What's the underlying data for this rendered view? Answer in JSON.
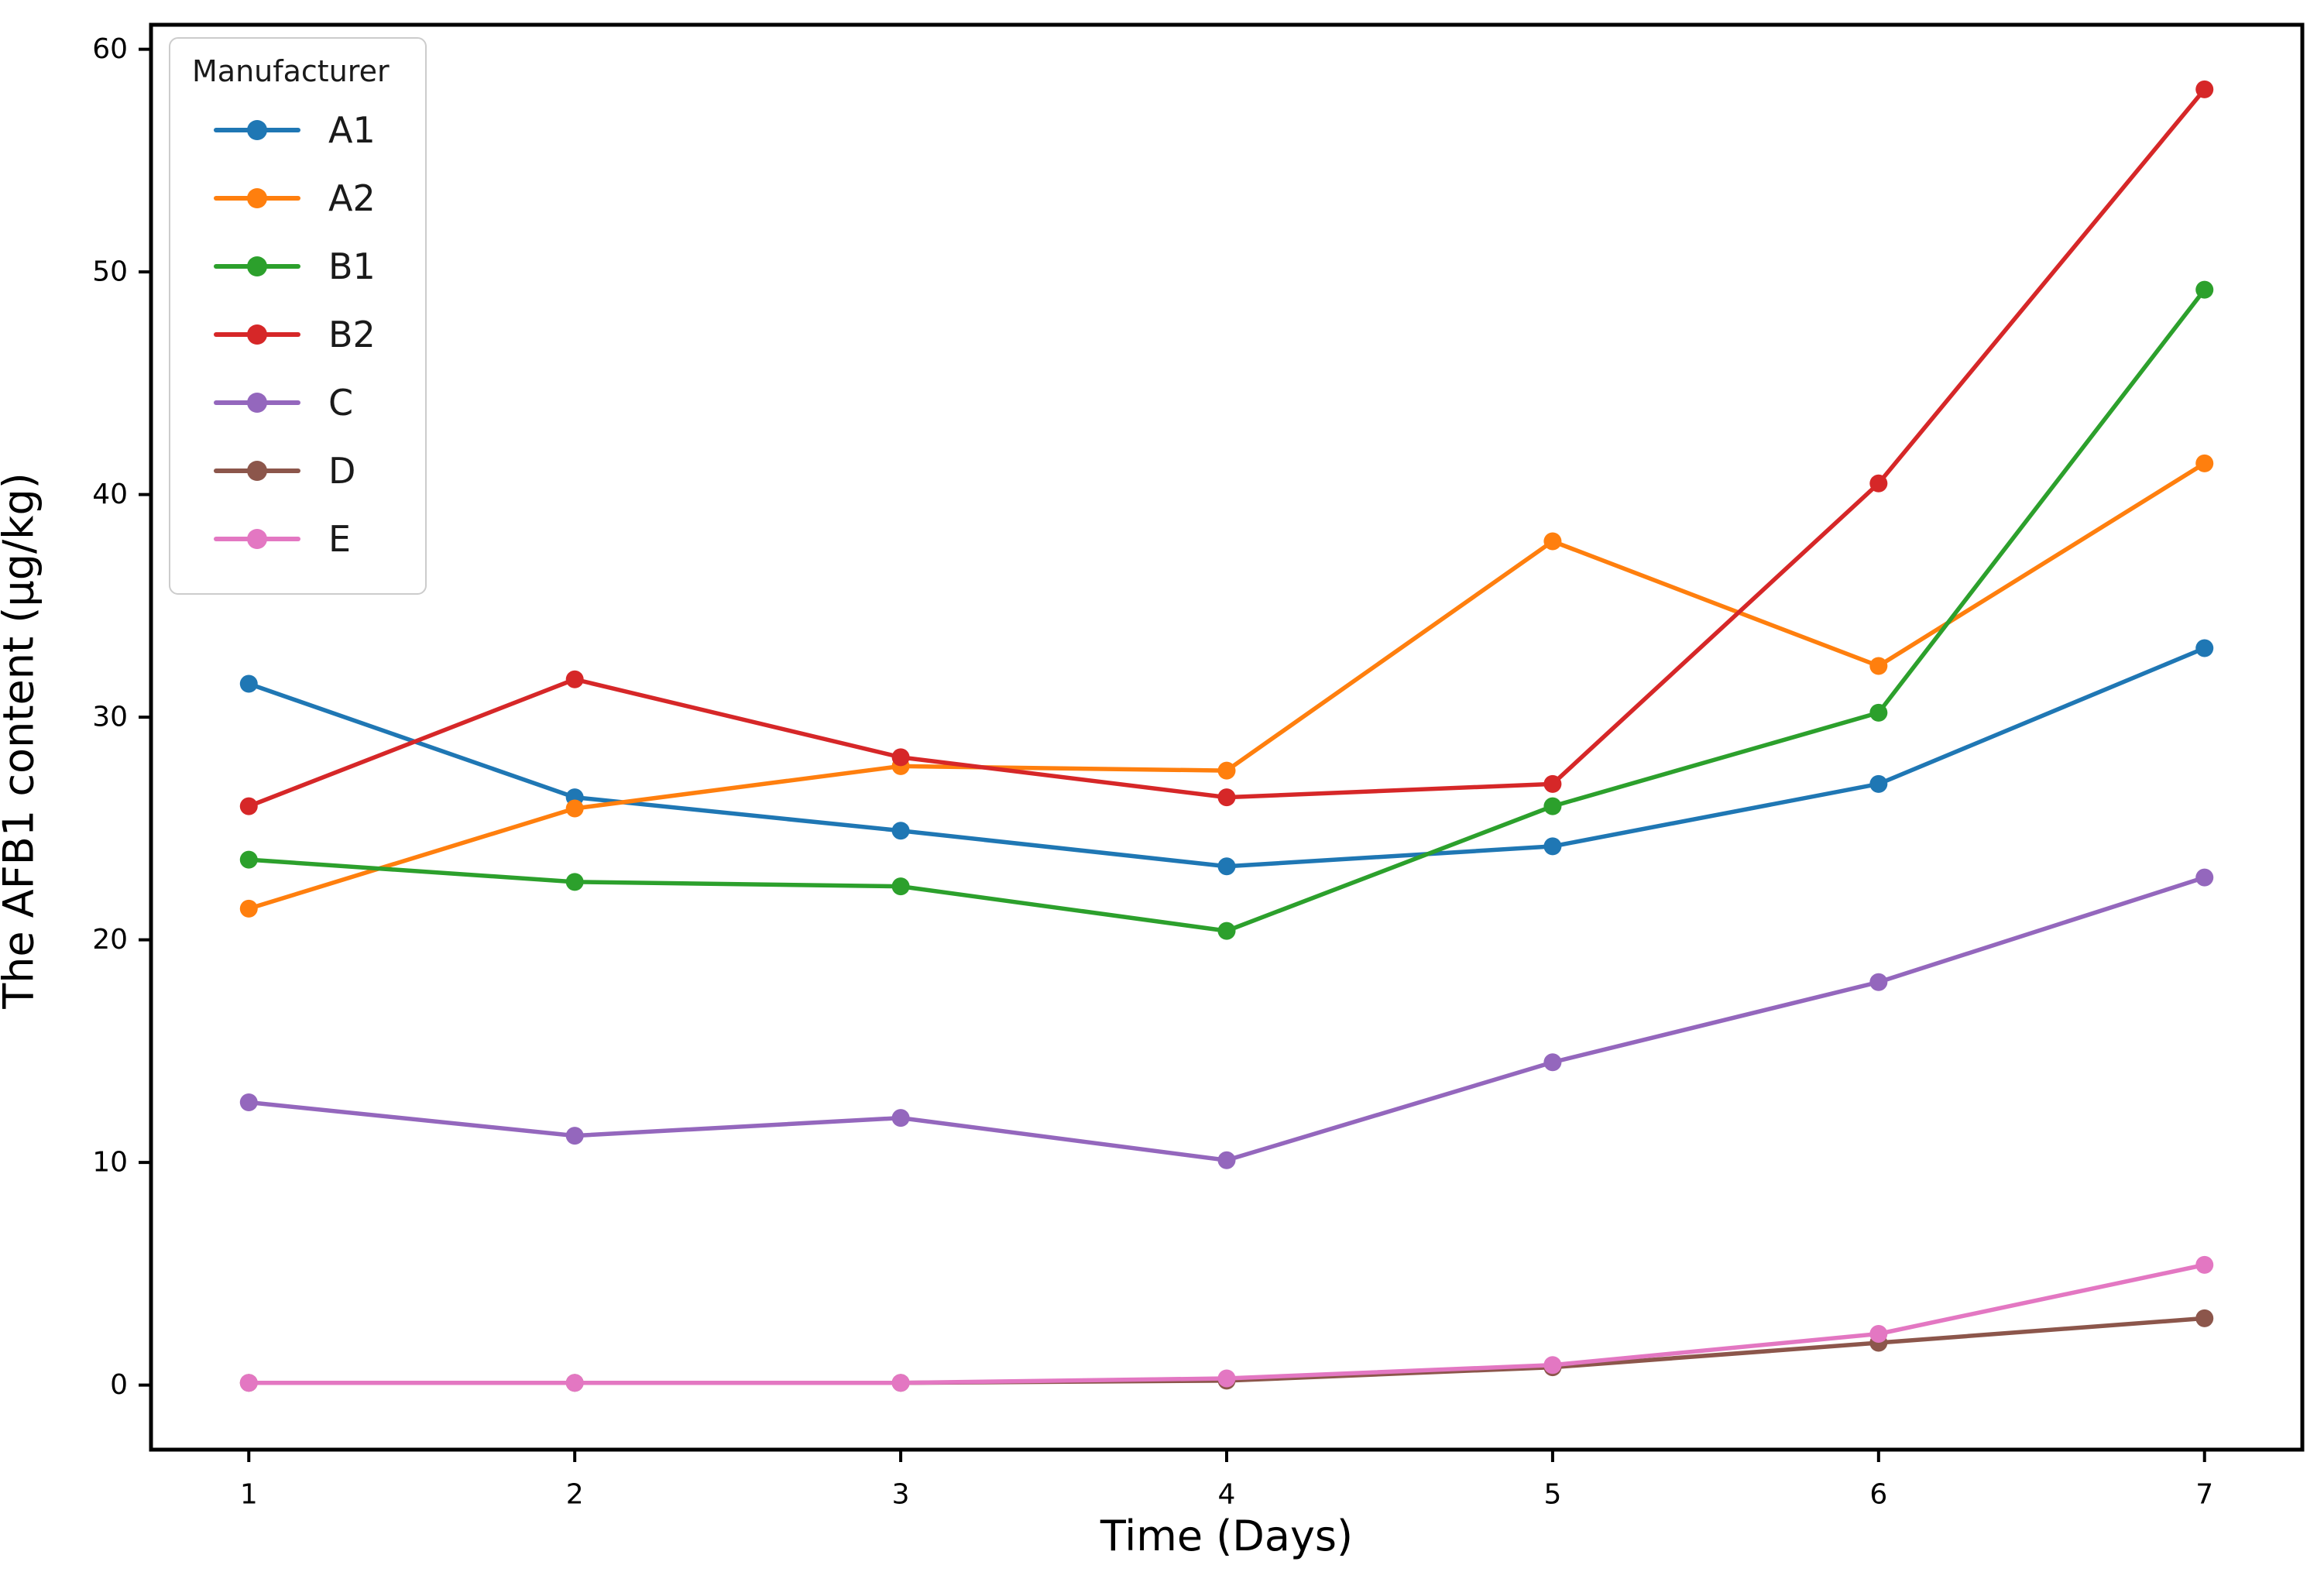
{
  "figure": {
    "background": "#ffffff",
    "axis_color": "#000000",
    "tick_label_color": "#000000"
  },
  "chart_data": {
    "type": "line",
    "title": "",
    "xlabel": "Time (Days)",
    "ylabel": "The AFB1 content (μg/kg)",
    "x": [
      1,
      2,
      3,
      4,
      5,
      6,
      7
    ],
    "xticks": [
      "1",
      "2",
      "3",
      "4",
      "5",
      "6",
      "7"
    ],
    "yticks": [
      0,
      10,
      20,
      30,
      40,
      50,
      60
    ],
    "xlim": [
      0.7,
      7.3
    ],
    "ylim": [
      -2.9,
      61.1
    ],
    "grid": false,
    "marker": "circle",
    "legend": {
      "title": "Manufacturer",
      "position": "upper-left"
    },
    "series": [
      {
        "name": "A1",
        "color": "#1f77b4",
        "values": [
          31.5,
          26.4,
          24.9,
          23.3,
          24.2,
          27.0,
          33.1
        ]
      },
      {
        "name": "A2",
        "color": "#ff7f0e",
        "values": [
          21.4,
          25.9,
          27.8,
          27.6,
          37.9,
          32.3,
          41.4
        ]
      },
      {
        "name": "B1",
        "color": "#2ca02c",
        "values": [
          23.6,
          22.6,
          22.4,
          20.4,
          26.0,
          30.2,
          49.2
        ]
      },
      {
        "name": "B2",
        "color": "#d62728",
        "values": [
          26.0,
          31.7,
          28.2,
          26.4,
          27.0,
          40.5,
          58.2
        ]
      },
      {
        "name": "C",
        "color": "#9467bd",
        "values": [
          12.7,
          11.2,
          12.0,
          10.1,
          14.5,
          18.1,
          22.8
        ]
      },
      {
        "name": "D",
        "color": "#8c564b",
        "values": [
          0.1,
          0.1,
          0.1,
          0.2,
          0.8,
          1.9,
          3.0
        ]
      },
      {
        "name": "E",
        "color": "#e377c2",
        "values": [
          0.1,
          0.1,
          0.1,
          0.3,
          0.9,
          2.3,
          5.4
        ]
      }
    ]
  }
}
